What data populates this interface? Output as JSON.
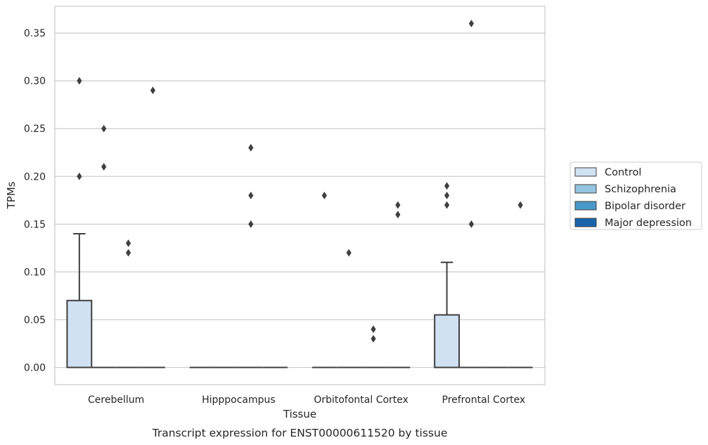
{
  "chart_data": {
    "type": "box",
    "caption": "Transcript expression for ENST00000611520 by tissue",
    "xlabel": "Tissue",
    "ylabel": "TPMs",
    "ylim": [
      -0.018,
      0.378
    ],
    "yticks": [
      0.0,
      0.05,
      0.1,
      0.15,
      0.2,
      0.25,
      0.3,
      0.35
    ],
    "ytick_labels": [
      "0.00",
      "0.05",
      "0.10",
      "0.15",
      "0.20",
      "0.25",
      "0.30",
      "0.35"
    ],
    "grid": "horizontal",
    "legend_position": "right",
    "categories": [
      "Cerebellum",
      "Hipppocampus",
      "Orbitofontal Cortex",
      "Prefrontal Cortex"
    ],
    "series": [
      {
        "name": "Control",
        "color": "#d0e1f2",
        "boxes": [
          {
            "q1": 0.0,
            "median": 0.0,
            "q3": 0.07,
            "whisker_low": 0.0,
            "whisker_high": 0.14,
            "outliers": [
              0.2,
              0.3
            ]
          },
          {
            "q1": 0.0,
            "median": 0.0,
            "q3": 0.0,
            "whisker_low": 0.0,
            "whisker_high": 0.0,
            "outliers": []
          },
          {
            "q1": 0.0,
            "median": 0.0,
            "q3": 0.0,
            "whisker_low": 0.0,
            "whisker_high": 0.0,
            "outliers": [
              0.18
            ]
          },
          {
            "q1": 0.0,
            "median": 0.0,
            "q3": 0.055,
            "whisker_low": 0.0,
            "whisker_high": 0.11,
            "outliers": [
              0.17,
              0.18,
              0.19
            ]
          }
        ]
      },
      {
        "name": "Schizophrenia",
        "color": "#94c4df",
        "boxes": [
          {
            "q1": 0.0,
            "median": 0.0,
            "q3": 0.0,
            "whisker_low": 0.0,
            "whisker_high": 0.0,
            "outliers": [
              0.21,
              0.25
            ]
          },
          {
            "q1": 0.0,
            "median": 0.0,
            "q3": 0.0,
            "whisker_low": 0.0,
            "whisker_high": 0.0,
            "outliers": []
          },
          {
            "q1": 0.0,
            "median": 0.0,
            "q3": 0.0,
            "whisker_low": 0.0,
            "whisker_high": 0.0,
            "outliers": [
              0.12
            ]
          },
          {
            "q1": 0.0,
            "median": 0.0,
            "q3": 0.0,
            "whisker_low": 0.0,
            "whisker_high": 0.0,
            "outliers": [
              0.15,
              0.36
            ]
          }
        ]
      },
      {
        "name": "Bipolar disorder",
        "color": "#4a98c9",
        "boxes": [
          {
            "q1": 0.0,
            "median": 0.0,
            "q3": 0.0,
            "whisker_low": 0.0,
            "whisker_high": 0.0,
            "outliers": [
              0.12,
              0.13
            ]
          },
          {
            "q1": 0.0,
            "median": 0.0,
            "q3": 0.0,
            "whisker_low": 0.0,
            "whisker_high": 0.0,
            "outliers": [
              0.15,
              0.18,
              0.23
            ]
          },
          {
            "q1": 0.0,
            "median": 0.0,
            "q3": 0.0,
            "whisker_low": 0.0,
            "whisker_high": 0.0,
            "outliers": [
              0.03,
              0.04
            ]
          },
          {
            "q1": 0.0,
            "median": 0.0,
            "q3": 0.0,
            "whisker_low": 0.0,
            "whisker_high": 0.0,
            "outliers": []
          }
        ]
      },
      {
        "name": "Major depression",
        "color": "#1764ab",
        "boxes": [
          {
            "q1": 0.0,
            "median": 0.0,
            "q3": 0.0,
            "whisker_low": 0.0,
            "whisker_high": 0.0,
            "outliers": [
              0.29
            ]
          },
          {
            "q1": 0.0,
            "median": 0.0,
            "q3": 0.0,
            "whisker_low": 0.0,
            "whisker_high": 0.0,
            "outliers": []
          },
          {
            "q1": 0.0,
            "median": 0.0,
            "q3": 0.0,
            "whisker_low": 0.0,
            "whisker_high": 0.0,
            "outliers": [
              0.16,
              0.17
            ]
          },
          {
            "q1": 0.0,
            "median": 0.0,
            "q3": 0.0,
            "whisker_low": 0.0,
            "whisker_high": 0.0,
            "outliers": [
              0.17
            ]
          }
        ]
      }
    ]
  }
}
